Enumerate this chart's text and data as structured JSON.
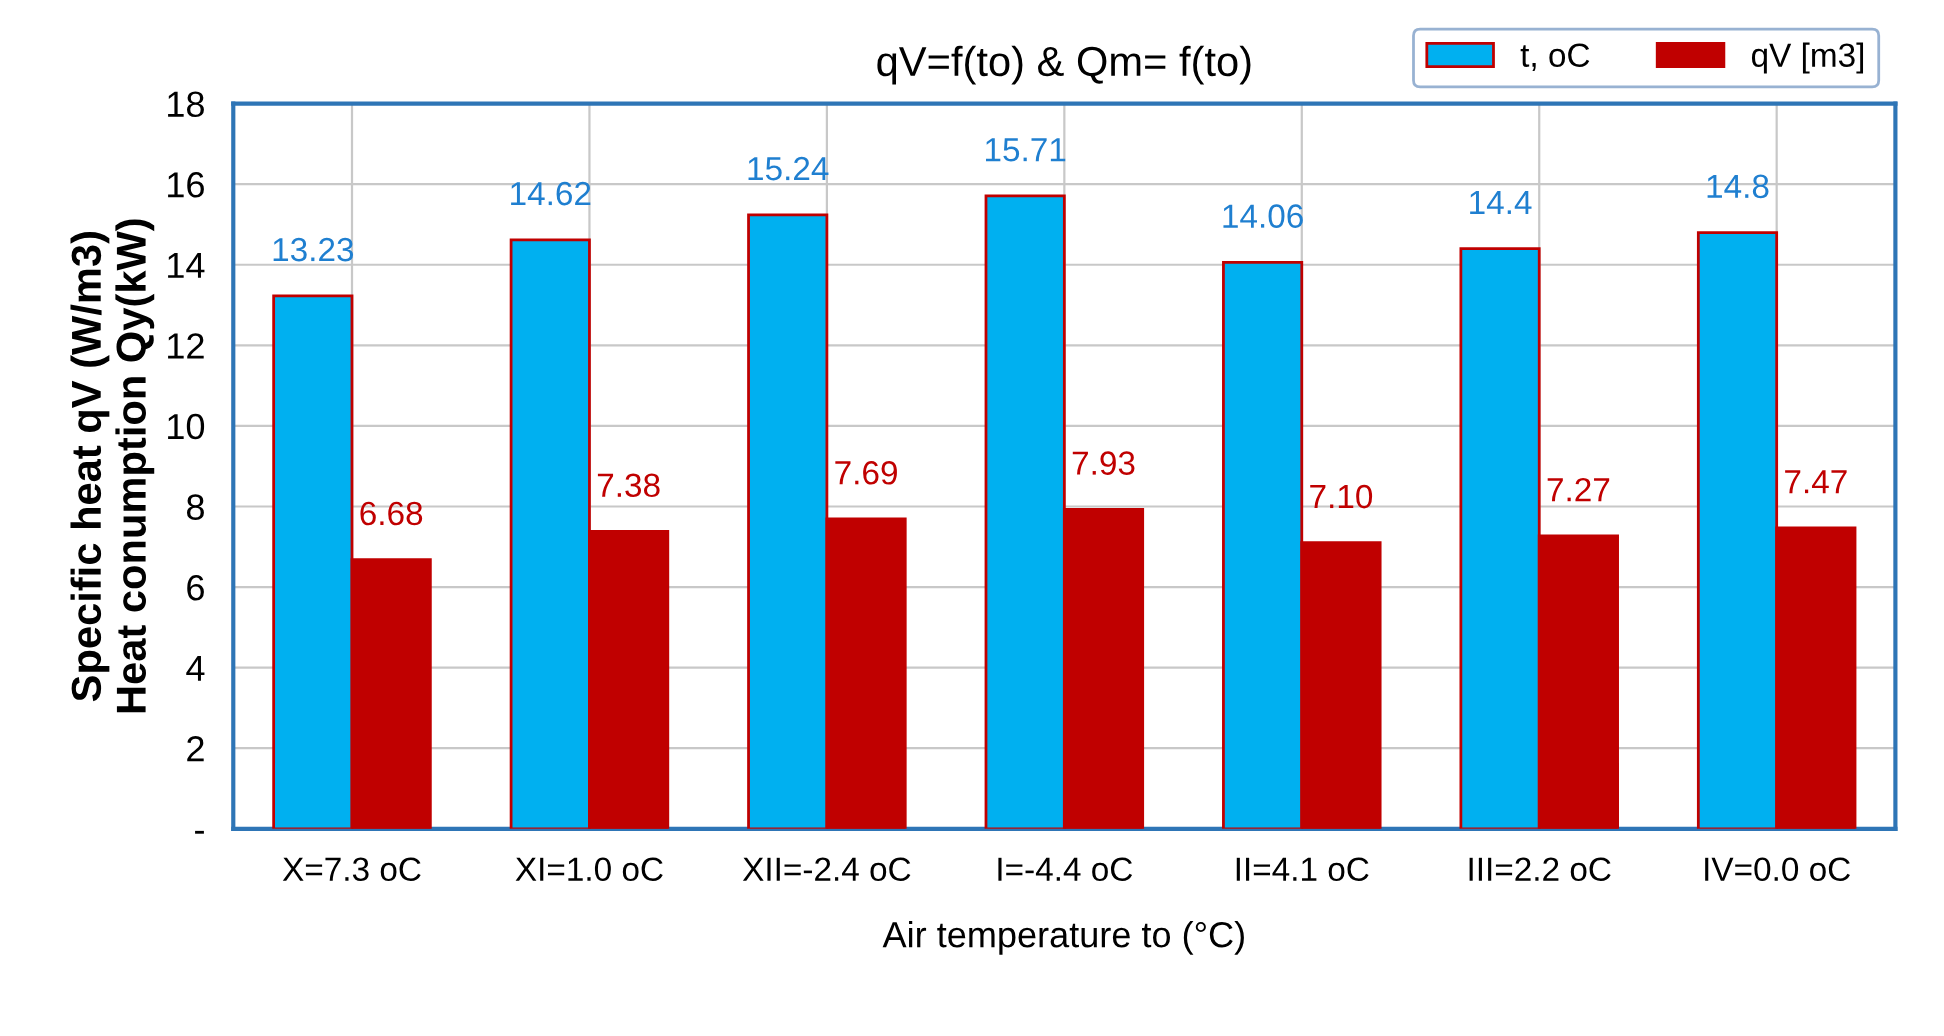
{
  "chart_data": {
    "type": "bar",
    "title": "qV=f(to) & Qm= f(to)",
    "xlabel": "Air temperature to (°C)",
    "ylabel": "Specific heat qV (W/m3)\nHeat conumption Qy(kW)",
    "categories": [
      "X=7.3 oC",
      "XI=1.0 oC",
      "XII=-2.4 oC",
      "I=-4.4 oC",
      "II=4.1 oC",
      "III=2.2 oC",
      "IV=0.0 oC"
    ],
    "series": [
      {
        "name": "t, oC",
        "color": "#00b0f0",
        "values": [
          13.23,
          14.62,
          15.24,
          15.71,
          14.06,
          14.4,
          14.8
        ],
        "value_labels": [
          "13.23",
          "14.62",
          "15.24",
          "15.71",
          "14.06",
          "14.4",
          "14.8"
        ]
      },
      {
        "name": "qV [m3]",
        "color": "#c00000",
        "values": [
          6.68,
          7.38,
          7.69,
          7.93,
          7.1,
          7.27,
          7.47
        ],
        "value_labels": [
          "6.68",
          "7.38",
          "7.69",
          "7.93",
          "7.10",
          "7.27",
          "7.47"
        ]
      }
    ],
    "ylim": [
      0,
      18
    ],
    "yticks": [
      {
        "value": 0,
        "label": "-"
      },
      2,
      4,
      6,
      8,
      10,
      12,
      14,
      16,
      18
    ],
    "grid": true,
    "legend": "top right"
  }
}
